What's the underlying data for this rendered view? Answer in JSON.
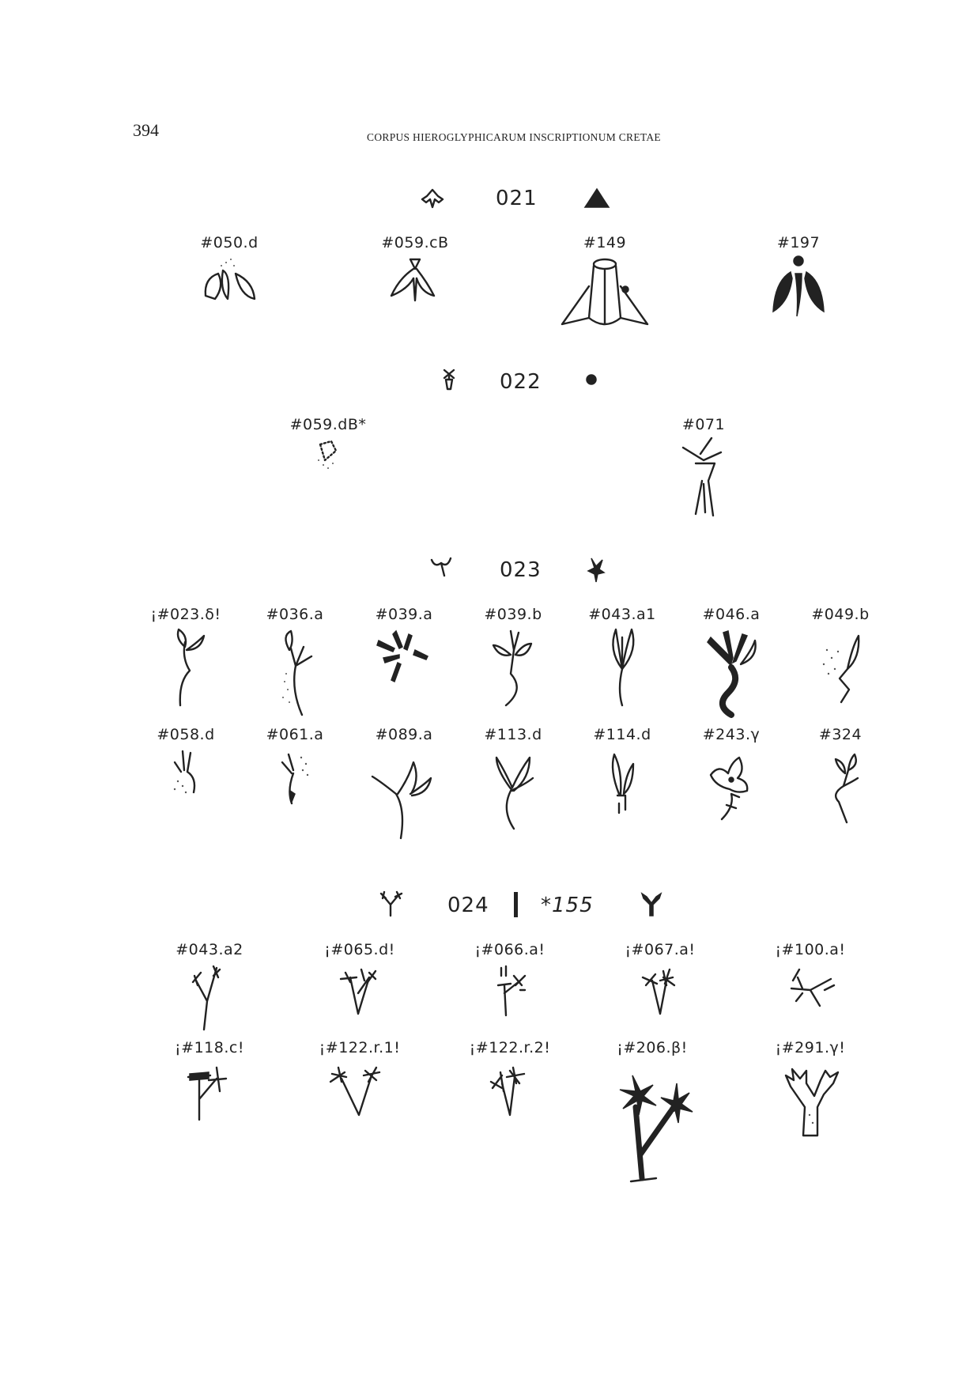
{
  "header": {
    "page_number": "394",
    "running_title": "CORPUS HIEROGLYPHICARUM INSCRIPTIONUM CRETAE"
  },
  "sections": [
    {
      "number": "021",
      "entries": [
        "#050.d",
        "#059.cB",
        "#149",
        "#197"
      ]
    },
    {
      "number": "022",
      "entries": [
        "#059.dB*",
        "#071"
      ]
    },
    {
      "number": "023",
      "entries": [
        "¡#023.δ!",
        "#036.a",
        "#039.a",
        "#039.b",
        "#043.a1",
        "#046.a",
        "#049.b",
        "#058.d",
        "#061.a",
        "#089.a",
        "#113.d",
        "#114.d",
        "#243.γ",
        "#324"
      ]
    },
    {
      "number": "024",
      "alt_number": "*155",
      "entries": [
        "#043.a2",
        "¡#065.d!",
        "¡#066.a!",
        "¡#067.a!",
        "¡#100.a!",
        "¡#118.c!",
        "¡#122.r.1!",
        "¡#122.r.2!",
        "¡#206.β!",
        "¡#291.γ!"
      ]
    }
  ],
  "icons": {
    "insect": "insect-icon",
    "sprout": "sprout-icon",
    "branch": "branch-icon"
  }
}
